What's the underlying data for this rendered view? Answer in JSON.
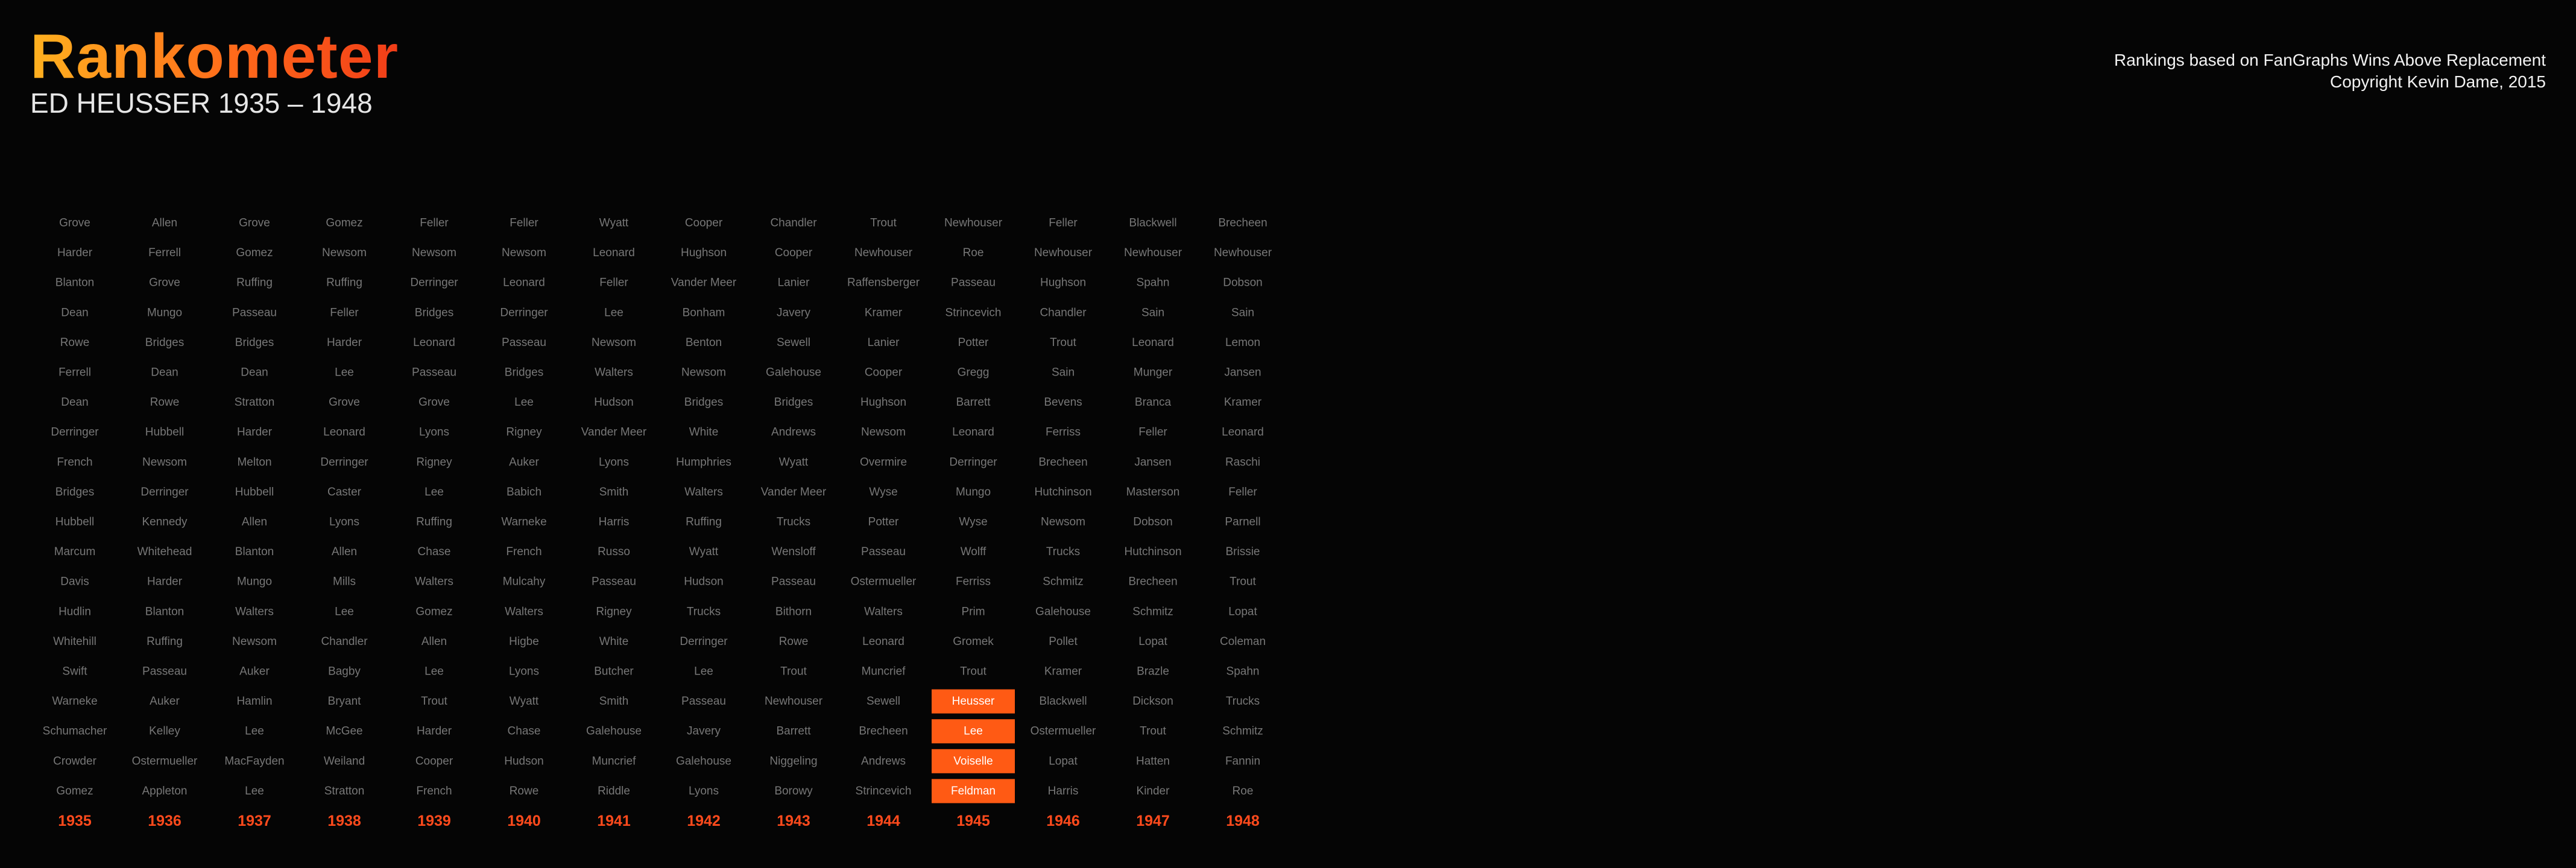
{
  "header": {
    "title": "Rankometer",
    "subtitle": "ED HEUSSER 1935 – 1948",
    "credit_line1": "Rankings based on FanGraphs Wins Above Replacement",
    "credit_line2": "Copyright Kevin Dame, 2015"
  },
  "colors": {
    "background": "#050505",
    "name_text": "#777777",
    "highlight_box": "#ff5a14",
    "highlight_text": "#ffffff",
    "year_text": "#ff4a1c",
    "title_gradient": [
      "#ffb11f",
      "#f13d18"
    ]
  },
  "chart_data": {
    "type": "table",
    "highlight_player": "Heusser",
    "years": [
      "1935",
      "1936",
      "1937",
      "1938",
      "1939",
      "1940",
      "1941",
      "1942",
      "1943",
      "1944",
      "1945",
      "1946",
      "1947",
      "1948"
    ],
    "columns": [
      {
        "year": "1935",
        "names": [
          "Grove",
          "Harder",
          "Blanton",
          "Dean",
          "Rowe",
          "Ferrell",
          "Dean",
          "Derringer",
          "French",
          "Bridges",
          "Hubbell",
          "Marcum",
          "Davis",
          "Hudlin",
          "Whitehill",
          "Swift",
          "Warneke",
          "Schumacher",
          "Crowder",
          "Gomez"
        ],
        "highlight": []
      },
      {
        "year": "1936",
        "names": [
          "Allen",
          "Ferrell",
          "Grove",
          "Mungo",
          "Bridges",
          "Dean",
          "Rowe",
          "Hubbell",
          "Newsom",
          "Derringer",
          "Kennedy",
          "Whitehead",
          "Harder",
          "Blanton",
          "Ruffing",
          "Passeau",
          "Auker",
          "Kelley",
          "Ostermueller",
          "Appleton"
        ],
        "highlight": []
      },
      {
        "year": "1937",
        "names": [
          "Grove",
          "Gomez",
          "Ruffing",
          "Passeau",
          "Bridges",
          "Dean",
          "Stratton",
          "Harder",
          "Melton",
          "Hubbell",
          "Allen",
          "Blanton",
          "Mungo",
          "Walters",
          "Newsom",
          "Auker",
          "Hamlin",
          "Lee",
          "MacFayden",
          "Lee"
        ],
        "highlight": []
      },
      {
        "year": "1938",
        "names": [
          "Gomez",
          "Newsom",
          "Ruffing",
          "Feller",
          "Harder",
          "Lee",
          "Grove",
          "Leonard",
          "Derringer",
          "Caster",
          "Lyons",
          "Allen",
          "Mills",
          "Lee",
          "Chandler",
          "Bagby",
          "Bryant",
          "McGee",
          "Weiland",
          "Stratton"
        ],
        "highlight": []
      },
      {
        "year": "1939",
        "names": [
          "Feller",
          "Newsom",
          "Derringer",
          "Bridges",
          "Leonard",
          "Passeau",
          "Grove",
          "Lyons",
          "Rigney",
          "Lee",
          "Ruffing",
          "Chase",
          "Walters",
          "Gomez",
          "Allen",
          "Lee",
          "Trout",
          "Harder",
          "Cooper",
          "French"
        ],
        "highlight": []
      },
      {
        "year": "1940",
        "names": [
          "Feller",
          "Newsom",
          "Leonard",
          "Derringer",
          "Passeau",
          "Bridges",
          "Lee",
          "Rigney",
          "Auker",
          "Babich",
          "Warneke",
          "French",
          "Mulcahy",
          "Walters",
          "Higbe",
          "Lyons",
          "Wyatt",
          "Chase",
          "Hudson",
          "Rowe"
        ],
        "highlight": []
      },
      {
        "year": "1941",
        "names": [
          "Wyatt",
          "Leonard",
          "Feller",
          "Lee",
          "Newsom",
          "Walters",
          "Hudson",
          "Vander Meer",
          "Lyons",
          "Smith",
          "Harris",
          "Russo",
          "Passeau",
          "Rigney",
          "White",
          "Butcher",
          "Smith",
          "Galehouse",
          "Muncrief",
          "Riddle"
        ],
        "highlight": []
      },
      {
        "year": "1942",
        "names": [
          "Cooper",
          "Hughson",
          "Vander Meer",
          "Bonham",
          "Benton",
          "Newsom",
          "Bridges",
          "White",
          "Humphries",
          "Walters",
          "Ruffing",
          "Wyatt",
          "Hudson",
          "Trucks",
          "Derringer",
          "Lee",
          "Passeau",
          "Javery",
          "Galehouse",
          "Lyons"
        ],
        "highlight": []
      },
      {
        "year": "1943",
        "names": [
          "Chandler",
          "Cooper",
          "Lanier",
          "Javery",
          "Sewell",
          "Galehouse",
          "Bridges",
          "Andrews",
          "Wyatt",
          "Vander Meer",
          "Trucks",
          "Wensloff",
          "Passeau",
          "Bithorn",
          "Rowe",
          "Trout",
          "Newhouser",
          "Barrett",
          "Niggeling",
          "Borowy"
        ],
        "highlight": []
      },
      {
        "year": "1944",
        "names": [
          "Trout",
          "Newhouser",
          "Raffensberger",
          "Kramer",
          "Lanier",
          "Cooper",
          "Hughson",
          "Newsom",
          "Overmire",
          "Wyse",
          "Potter",
          "Passeau",
          "Ostermueller",
          "Walters",
          "Leonard",
          "Muncrief",
          "Sewell",
          "Brecheen",
          "Andrews",
          "Strincevich"
        ],
        "highlight": []
      },
      {
        "year": "1945",
        "names": [
          "Newhouser",
          "Roe",
          "Passeau",
          "Strincevich",
          "Potter",
          "Gregg",
          "Barrett",
          "Leonard",
          "Derringer",
          "Mungo",
          "Wyse",
          "Wolff",
          "Ferriss",
          "Prim",
          "Gromek",
          "Trout",
          "Heusser",
          "Lee",
          "Voiselle",
          "Feldman"
        ],
        "highlight": [
          16,
          17,
          18,
          19
        ]
      },
      {
        "year": "1946",
        "names": [
          "Feller",
          "Newhouser",
          "Hughson",
          "Chandler",
          "Trout",
          "Sain",
          "Bevens",
          "Ferriss",
          "Brecheen",
          "Hutchinson",
          "Newsom",
          "Trucks",
          "Schmitz",
          "Galehouse",
          "Pollet",
          "Kramer",
          "Blackwell",
          "Ostermueller",
          "Lopat",
          "Harris"
        ],
        "highlight": []
      },
      {
        "year": "1947",
        "names": [
          "Blackwell",
          "Newhouser",
          "Spahn",
          "Sain",
          "Leonard",
          "Munger",
          "Branca",
          "Feller",
          "Jansen",
          "Masterson",
          "Dobson",
          "Hutchinson",
          "Brecheen",
          "Schmitz",
          "Lopat",
          "Brazle",
          "Dickson",
          "Trout",
          "Hatten",
          "Kinder"
        ],
        "highlight": []
      },
      {
        "year": "1948",
        "names": [
          "Brecheen",
          "Newhouser",
          "Dobson",
          "Sain",
          "Lemon",
          "Jansen",
          "Kramer",
          "Leonard",
          "Raschi",
          "Feller",
          "Parnell",
          "Brissie",
          "Trout",
          "Lopat",
          "Coleman",
          "Spahn",
          "Trucks",
          "Schmitz",
          "Fannin",
          "Roe"
        ],
        "highlight": []
      }
    ]
  }
}
